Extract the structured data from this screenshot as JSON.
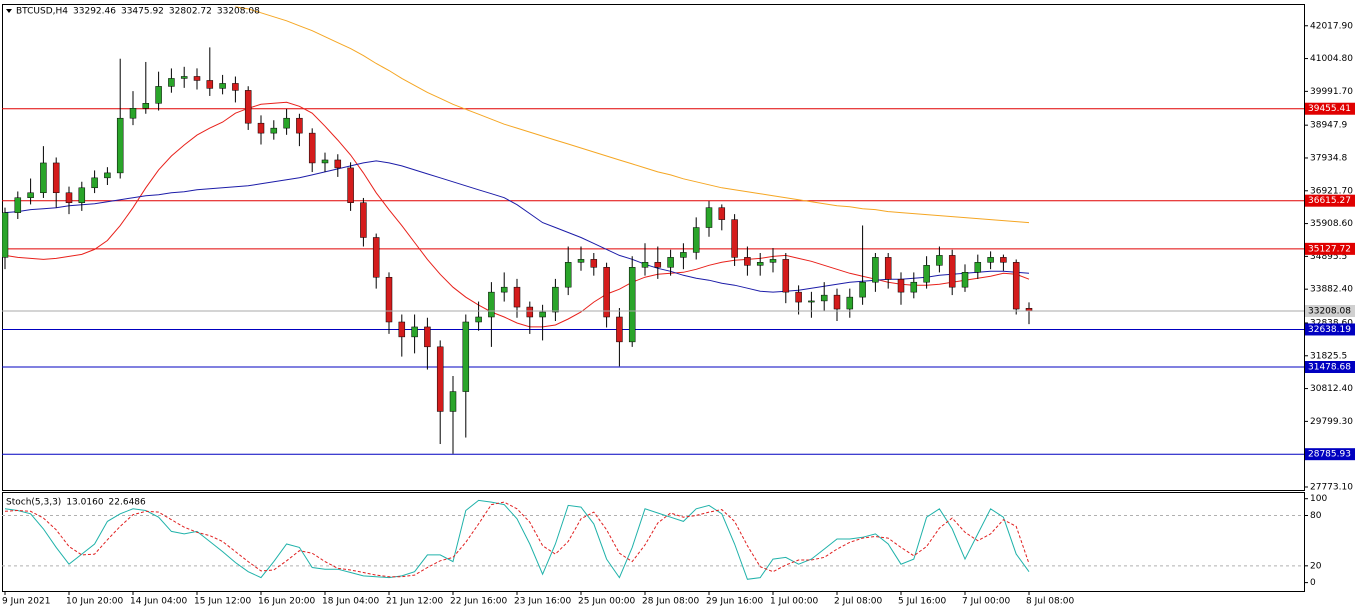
{
  "chart_data": {
    "type": "candlestick",
    "symbol": "BTCUSD,H4",
    "up_color": "#2aa52a",
    "down_color": "#d41c1c",
    "categories": [
      "9 Jun 2021",
      null,
      null,
      null,
      null,
      "10 Jun 20:00",
      null,
      null,
      null,
      null,
      "14 Jun 04:00",
      null,
      null,
      null,
      null,
      "15 Jun 12:00",
      null,
      null,
      null,
      null,
      "16 Jun 20:00",
      null,
      null,
      null,
      null,
      "18 Jun 04:00",
      null,
      null,
      null,
      null,
      "21 Jun 12:00",
      null,
      null,
      null,
      null,
      "22 Jun 16:00",
      null,
      null,
      null,
      null,
      "23 Jun 16:00",
      null,
      null,
      null,
      null,
      "25 Jun 00:00",
      null,
      null,
      null,
      null,
      "28 Jun 08:00",
      null,
      null,
      null,
      null,
      "29 Jun 16:00",
      null,
      null,
      null,
      null,
      "1 Jul 00:00",
      null,
      null,
      null,
      null,
      "2 Jul 08:00",
      null,
      null,
      null,
      null,
      "5 Jul 16:00",
      null,
      null,
      null,
      null,
      "7 Jul 00:00",
      null,
      null,
      null,
      null,
      "8 Jul 08:00"
    ],
    "open": [
      34865,
      36246,
      36707,
      36860,
      37781,
      36860,
      36553,
      37014,
      37321,
      37474,
      39163,
      39470,
      39623,
      40145,
      40391,
      40452,
      40329,
      40084,
      40237,
      40022,
      39009,
      38702,
      38856,
      39163,
      38702,
      37781,
      37873,
      37628,
      36553,
      35479,
      34251,
      32869,
      32409,
      32716,
      32102,
      30106,
      30720,
      32869,
      33023,
      33791,
      33944,
      33330,
      33023,
      33177,
      33944,
      34712,
      34803,
      34558,
      33023,
      32255,
      34558,
      34712,
      34558,
      34865,
      35018,
      35786,
      36400,
      36031,
      34865,
      34619,
      34712,
      34803,
      33791,
      33484,
      33520,
      33698,
      33269,
      33637,
      34098,
      34865,
      34189,
      33791,
      34098,
      34619,
      34926,
      33944,
      34405,
      34712,
      34865,
      34712,
      33292.46
    ],
    "high": [
      36400,
      36900,
      37300,
      38300,
      37950,
      37050,
      37200,
      37550,
      37650,
      41000,
      40000,
      40900,
      40600,
      40700,
      40750,
      40700,
      41350,
      40500,
      40450,
      40150,
      39250,
      39100,
      39450,
      39300,
      38850,
      38100,
      38050,
      37800,
      36700,
      35600,
      34400,
      33100,
      33100,
      33000,
      32300,
      31200,
      33100,
      33500,
      34100,
      34400,
      34200,
      33500,
      33400,
      34200,
      35200,
      35200,
      35000,
      34700,
      33300,
      34900,
      35300,
      35200,
      35100,
      35300,
      36100,
      36600,
      36500,
      36200,
      35200,
      35000,
      35150,
      35000,
      34000,
      33800,
      34100,
      33900,
      33900,
      35850,
      35000,
      35000,
      34400,
      34400,
      34900,
      35200,
      35100,
      34650,
      34950,
      35050,
      34950,
      34800,
      33475.92
    ],
    "low": [
      34500,
      36050,
      36500,
      36700,
      36400,
      36200,
      36300,
      36850,
      37100,
      37300,
      38950,
      39300,
      39400,
      39950,
      40100,
      40050,
      39850,
      39900,
      39650,
      38800,
      38350,
      38500,
      38650,
      38300,
      37500,
      37500,
      37350,
      36300,
      35200,
      33900,
      32500,
      31800,
      31900,
      31400,
      29100,
      28800,
      29300,
      32600,
      32100,
      33500,
      33000,
      32500,
      32300,
      32900,
      33700,
      34450,
      34300,
      32700,
      31500,
      32100,
      34300,
      34200,
      34300,
      34500,
      34800,
      35500,
      35700,
      34600,
      34300,
      34300,
      34400,
      33450,
      33100,
      33000,
      33200,
      32900,
      33000,
      33400,
      33800,
      33900,
      33400,
      33600,
      33900,
      34400,
      33700,
      33800,
      34200,
      34500,
      34450,
      33100,
      32802.72
    ],
    "close": [
      36246,
      36707,
      36860,
      37781,
      36860,
      36553,
      37014,
      37321,
      37474,
      39163,
      39470,
      39623,
      40145,
      40391,
      40452,
      40329,
      40084,
      40237,
      40022,
      39009,
      38702,
      38856,
      39163,
      38702,
      37781,
      37873,
      37628,
      36553,
      35479,
      34251,
      32869,
      32409,
      32716,
      32102,
      30106,
      30720,
      32869,
      33023,
      33791,
      33944,
      33330,
      33023,
      33177,
      33944,
      34712,
      34803,
      34558,
      33023,
      32255,
      34558,
      34712,
      34558,
      34865,
      35018,
      35786,
      36400,
      36031,
      34865,
      34619,
      34712,
      34803,
      33791,
      33484,
      33520,
      33698,
      33269,
      33637,
      34098,
      34865,
      34189,
      33791,
      34098,
      34619,
      34926,
      33944,
      34405,
      34712,
      34865,
      34712,
      33269,
      33208.08
    ],
    "moving_averages": [
      {
        "color": "#e8211b",
        "values": [
          34926,
          34865,
          34834,
          34803,
          34834,
          34895,
          34957,
          35110,
          35387,
          35847,
          36400,
          37014,
          37566,
          37996,
          38334,
          38640,
          38856,
          39041,
          39317,
          39470,
          39593,
          39624,
          39654,
          39531,
          39317,
          38917,
          38487,
          38027,
          37474,
          36860,
          36338,
          35847,
          35325,
          34803,
          34343,
          33944,
          33636,
          33391,
          33176,
          33023,
          32839,
          32716,
          32716,
          32777,
          32962,
          33176,
          33483,
          33729,
          33882,
          34097,
          34251,
          34343,
          34374,
          34404,
          34497,
          34620,
          34712,
          34773,
          34803,
          34834,
          34895,
          34926,
          34834,
          34742,
          34620,
          34497,
          34374,
          34282,
          34190,
          34097,
          34036,
          34005,
          34005,
          34036,
          34097,
          34159,
          34220,
          34282,
          34374,
          34343,
          34190
        ]
      },
      {
        "color": "#1c1ca8",
        "values": [
          36246,
          36277,
          36339,
          36369,
          36400,
          36461,
          36492,
          36523,
          36584,
          36645,
          36707,
          36768,
          36799,
          36860,
          36891,
          36953,
          36983,
          37014,
          37045,
          37075,
          37137,
          37198,
          37260,
          37321,
          37413,
          37505,
          37597,
          37689,
          37781,
          37843,
          37781,
          37689,
          37566,
          37444,
          37321,
          37198,
          37075,
          36953,
          36830,
          36707,
          36492,
          36216,
          35940,
          35786,
          35633,
          35479,
          35295,
          35111,
          34927,
          34804,
          34650,
          34527,
          34435,
          34312,
          34220,
          34159,
          34067,
          34005,
          33913,
          33821,
          33791,
          33821,
          33852,
          33913,
          33975,
          34036,
          34098,
          34128,
          34159,
          34190,
          34190,
          34220,
          34251,
          34312,
          34343,
          34374,
          34404,
          34435,
          34435,
          34404,
          34374
        ]
      },
      {
        "color": "#f5a623",
        "values": [
          null,
          null,
          null,
          null,
          null,
          null,
          null,
          null,
          null,
          null,
          null,
          null,
          null,
          null,
          null,
          null,
          null,
          null,
          42601,
          42540,
          42417,
          42294,
          42171,
          42018,
          41864,
          41680,
          41496,
          41312,
          41097,
          40851,
          40637,
          40391,
          40176,
          39961,
          39777,
          39593,
          39439,
          39286,
          39132,
          38979,
          38856,
          38733,
          38610,
          38487,
          38365,
          38242,
          38119,
          37996,
          37873,
          37751,
          37628,
          37505,
          37413,
          37290,
          37198,
          37106,
          37014,
          36953,
          36891,
          36830,
          36768,
          36707,
          36645,
          36584,
          36523,
          36461,
          36431,
          36369,
          36339,
          36277,
          36247,
          36216,
          36185,
          36154,
          36124,
          36093,
          36062,
          36031,
          36001,
          35970,
          35940
        ]
      }
    ],
    "levels": [
      {
        "value": 39455.41,
        "color": "#e00000"
      },
      {
        "value": 36615.27,
        "color": "#e00000"
      },
      {
        "value": 35127.72,
        "color": "#e00000"
      },
      {
        "value": 32638.19,
        "color": "#0000c0"
      },
      {
        "value": 31478.68,
        "color": "#0000c0"
      },
      {
        "value": 28785.93,
        "color": "#0000c0"
      }
    ],
    "ylim": [
      27680,
      42690
    ],
    "yticks": [
      {
        "value": 42017.9,
        "label": "42017.90"
      },
      {
        "value": 41004.8,
        "label": "41004.80"
      },
      {
        "value": 39991.7,
        "label": "39991.70"
      },
      38947.9,
      37934.8,
      {
        "value": 36921.7,
        "label": "36921.70"
      },
      {
        "value": 35908.6,
        "label": "35908.60"
      },
      34895.5,
      {
        "value": 33882.4,
        "label": "33882.40"
      },
      {
        "value": 32838.6,
        "label": "32838.60"
      },
      31825.5,
      {
        "value": 30812.4,
        "label": "30812.40"
      },
      {
        "value": 29799.3,
        "label": "29799.30"
      },
      {
        "value": 27773.1,
        "label": "27773.10"
      }
    ],
    "stochastic": {
      "label": "Stoch(5,3,3)",
      "header": [
        {
          "value": 13.016,
          "label": "13.0160"
        },
        22.6486
      ],
      "ylim": [
        -10,
        108
      ],
      "yticks": [
        0,
        20,
        80,
        100
      ],
      "levels": [
        20,
        80
      ],
      "main": {
        "color": "#20b2aa",
        "values": [
          88,
          86,
          82,
          64,
          42,
          22,
          34,
          46,
          73,
          82,
          88,
          86,
          78,
          61,
          58,
          61,
          49,
          37,
          24,
          13,
          6,
          25,
          46,
          42,
          18,
          16,
          16,
          12,
          8,
          7,
          6,
          8,
          13,
          33,
          33,
          25,
          86,
          98,
          96,
          93,
          76,
          46,
          10,
          46,
          92,
          90,
          70,
          28,
          6,
          42,
          88,
          83,
          78,
          73,
          88,
          92,
          82,
          46,
          4,
          6,
          28,
          30,
          22,
          28,
          40,
          52,
          52,
          54,
          58,
          46,
          22,
          28,
          78,
          88,
          64,
          28,
          58,
          88,
          78,
          34,
          13.016
        ]
      },
      "signal": {
        "color": "#e02020",
        "values": [
          85,
          86,
          85,
          77,
          63,
          43,
          33,
          34,
          51,
          67,
          81,
          85,
          84,
          75,
          66,
          60,
          56,
          49,
          37,
          25,
          14,
          15,
          26,
          38,
          35,
          25,
          17,
          15,
          12,
          9,
          7,
          7,
          9,
          18,
          26,
          30,
          48,
          70,
          93,
          96,
          88,
          72,
          44,
          34,
          49,
          76,
          84,
          63,
          35,
          25,
          45,
          71,
          83,
          78,
          80,
          84,
          87,
          73,
          44,
          19,
          13,
          21,
          27,
          27,
          30,
          40,
          48,
          53,
          55,
          53,
          42,
          32,
          43,
          65,
          77,
          60,
          50,
          58,
          75,
          67,
          22.6486
        ]
      }
    }
  }
}
